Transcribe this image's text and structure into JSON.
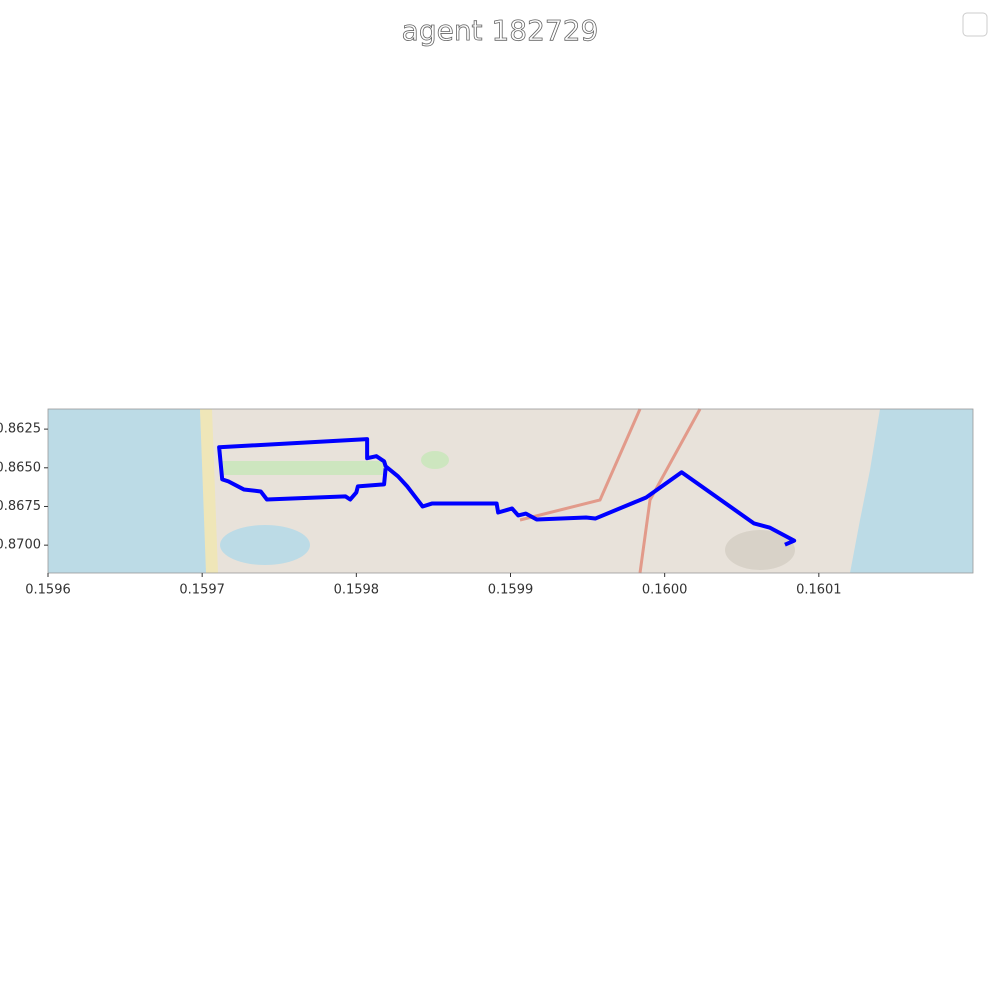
{
  "chart_data": {
    "type": "line",
    "title": "agent 182729",
    "x": [
      0.160078,
      0.160084,
      0.160068,
      0.160058,
      0.160011,
      0.159988,
      0.159955,
      0.159949,
      0.159917,
      0.15991,
      0.159905,
      0.159901,
      0.159892,
      0.159891,
      0.159849,
      0.159843,
      0.15984,
      0.159838,
      0.159833,
      0.159827,
      0.159819,
      0.159818,
      0.159813,
      0.159807,
      0.159807,
      0.159711,
      0.159713,
      0.159717,
      0.159727,
      0.159738,
      0.159742,
      0.159793,
      0.159796,
      0.1598,
      0.159801,
      0.159818,
      0.159819
    ],
    "series": [
      {
        "color": "#0000ff",
        "values": [
          0.86997,
          0.86971,
          0.86886,
          0.8686,
          0.86529,
          0.86692,
          0.86828,
          0.86821,
          0.86834,
          0.86796,
          0.86808,
          0.86763,
          0.86789,
          0.86731,
          0.86731,
          0.8675,
          0.86711,
          0.86685,
          0.8662,
          0.86555,
          0.8649,
          0.86458,
          0.86425,
          0.86438,
          0.86315,
          0.86367,
          0.86575,
          0.86588,
          0.8664,
          0.86653,
          0.86705,
          0.86685,
          0.86705,
          0.86659,
          0.8662,
          0.86607,
          0.86503
        ]
      }
    ],
    "xlim": [
      0.1596,
      0.1602
    ],
    "ylim": [
      0.8718,
      0.8612
    ],
    "xticks": [
      0.1596,
      0.1597,
      0.1598,
      0.1599,
      {
        "value": 0.16,
        "label": "0.1600"
      },
      0.1601
    ],
    "yticks": [
      0.8625,
      {
        "value": 0.865,
        "label": "0.8650"
      },
      0.8675,
      {
        "value": 0.87,
        "label": "0.8700"
      }
    ]
  }
}
